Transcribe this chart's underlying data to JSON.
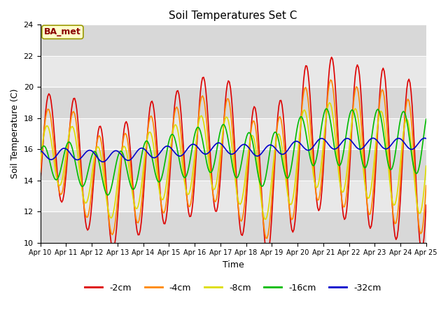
{
  "title": "Soil Temperatures Set C",
  "xlabel": "Time",
  "ylabel": "Soil Temperature (C)",
  "ylim": [
    10,
    24
  ],
  "yticks": [
    10,
    12,
    14,
    16,
    18,
    20,
    22,
    24
  ],
  "annotation": "BA_met",
  "legend_labels": [
    "-2cm",
    "-4cm",
    "-8cm",
    "-16cm",
    "-32cm"
  ],
  "line_colors": [
    "#dd0000",
    "#ff8800",
    "#dddd00",
    "#00bb00",
    "#0000cc"
  ],
  "plot_bg_color": "#e8e8e8",
  "white_band_color": "#f0f0f0",
  "n_days": 15,
  "start_day": 10,
  "figsize": [
    6.4,
    4.8
  ],
  "dpi": 100
}
